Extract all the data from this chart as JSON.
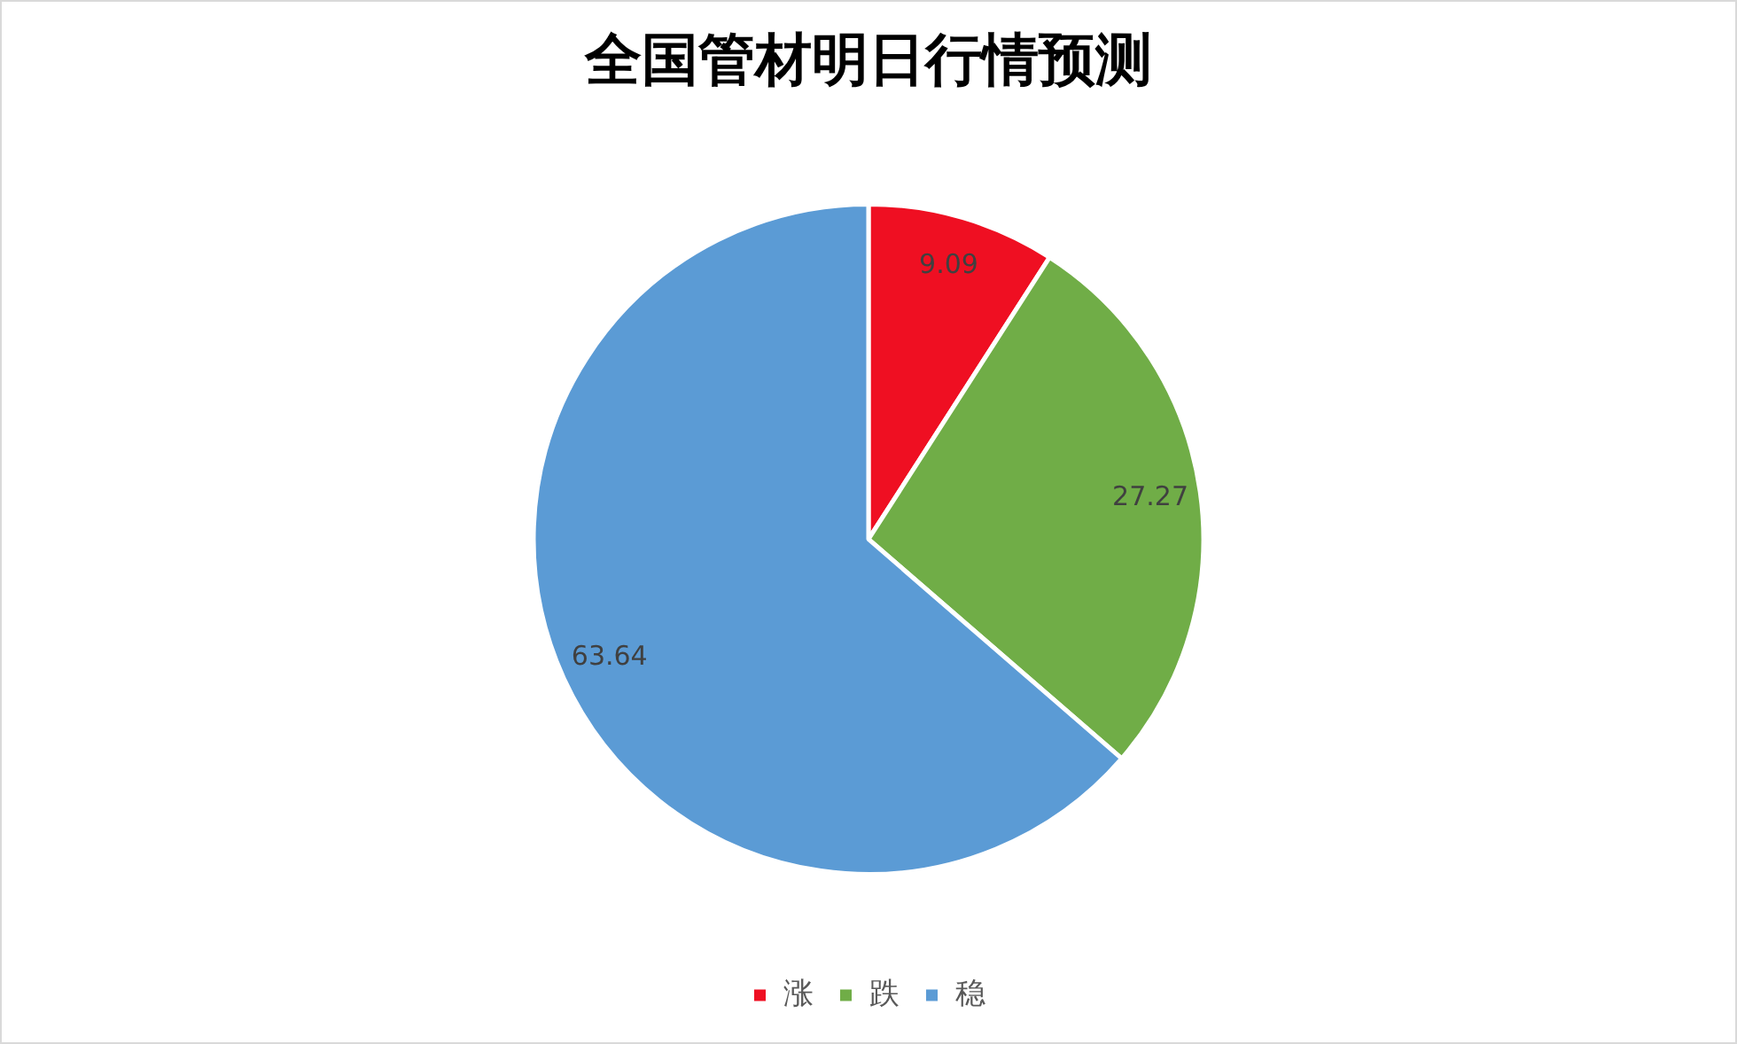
{
  "chart_data": {
    "type": "pie",
    "title": "全国管材明日行情预测",
    "categories": [
      "涨",
      "跌",
      "稳"
    ],
    "values": [
      9.09,
      27.27,
      63.64
    ],
    "colors": [
      "#ef0f22",
      "#70ad47",
      "#5b9bd5"
    ],
    "data_labels": true,
    "legend": "bottom"
  }
}
